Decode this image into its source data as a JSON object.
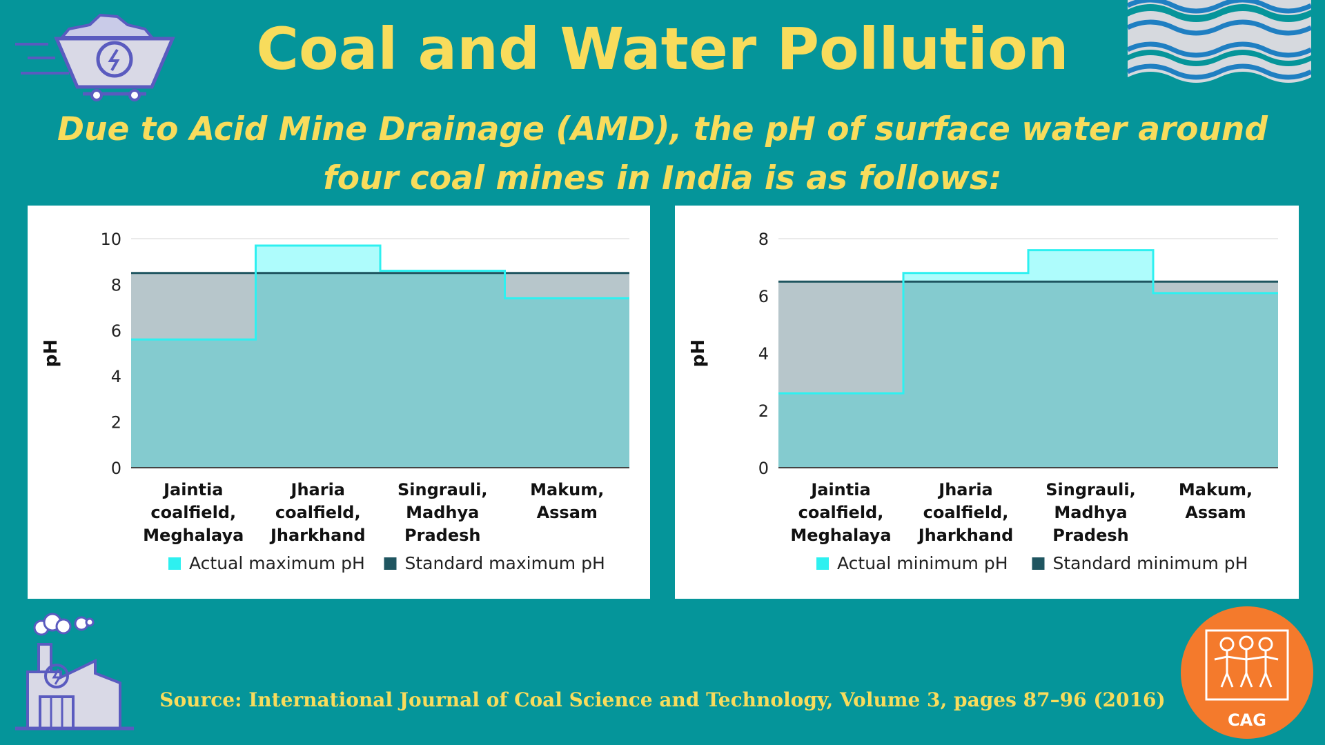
{
  "header": {
    "title": "Coal and Water Pollution",
    "subtitle_line1": "Due to Acid Mine Drainage (AMD), the pH of surface water around",
    "subtitle_line2": "four coal mines in India is as follows:"
  },
  "footer": {
    "source": "Source: International Journal of Coal Science and Technology, Volume 3, pages 87–96 (2016)",
    "logo_text": "CAG"
  },
  "colors": {
    "background": "#05959a",
    "accent_yellow": "#f8dc5c",
    "actual_fill": "#aefcfc",
    "actual_line": "#2ef0f0",
    "standard_line": "#1f5560",
    "standard_fill": "#b7c6cb",
    "overlap_fill": "#84cbcf",
    "logo_orange": "#f47a2c"
  },
  "chart_data": [
    {
      "type": "area",
      "ylabel": "pH",
      "xlabel": "",
      "ylim": [
        0,
        10
      ],
      "yticks": [
        "0",
        "2",
        "4",
        "6",
        "8",
        "10"
      ],
      "categories": [
        [
          "Jaintia",
          "coalfield,",
          "Meghalaya"
        ],
        [
          "Jharia",
          "coalfield,",
          "Jharkhand"
        ],
        [
          "Singrauli,",
          "Madhya",
          "Pradesh"
        ],
        [
          "Makum,",
          "Assam"
        ]
      ],
      "series": [
        {
          "name": "Actual maximum pH",
          "values": [
            5.6,
            9.7,
            8.6,
            7.4
          ]
        },
        {
          "name": "Standard maximum pH",
          "values": [
            8.5,
            8.5,
            8.5,
            8.5
          ]
        }
      ],
      "legend": "bottom"
    },
    {
      "type": "area",
      "ylabel": "pH",
      "xlabel": "",
      "ylim": [
        0,
        8
      ],
      "yticks": [
        "0",
        "2",
        "4",
        "6",
        "8"
      ],
      "categories": [
        [
          "Jaintia",
          "coalfield,",
          "Meghalaya"
        ],
        [
          "Jharia",
          "coalfield,",
          "Jharkhand"
        ],
        [
          "Singrauli,",
          "Madhya",
          "Pradesh"
        ],
        [
          "Makum,",
          "Assam"
        ]
      ],
      "series": [
        {
          "name": "Actual minimum pH",
          "values": [
            2.6,
            6.8,
            7.6,
            6.1
          ]
        },
        {
          "name": "Standard minimum pH",
          "values": [
            6.5,
            6.5,
            6.5,
            6.5
          ]
        }
      ],
      "legend": "bottom"
    }
  ]
}
